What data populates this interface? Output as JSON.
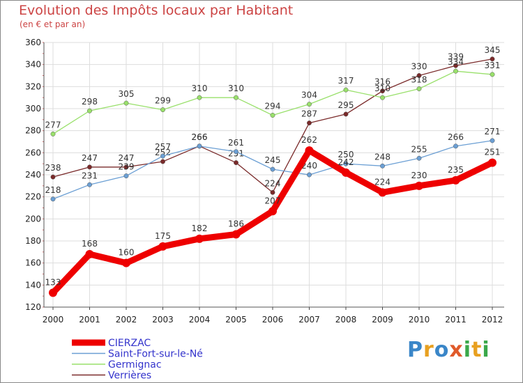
{
  "chart_data": {
    "type": "line",
    "title": "Evolution des Impôts locaux par Habitant",
    "subtitle": "(en € et par an)",
    "xlabel": "",
    "ylabel": "",
    "x": [
      2000,
      2001,
      2002,
      2003,
      2004,
      2005,
      2006,
      2007,
      2008,
      2009,
      2010,
      2011,
      2012
    ],
    "ylim": [
      120,
      360
    ],
    "yticks": [
      120,
      140,
      160,
      180,
      200,
      220,
      240,
      260,
      280,
      300,
      320,
      340,
      360
    ],
    "grid": true,
    "legend_position": "bottom-left",
    "series": [
      {
        "name": "CIERZAC",
        "color": "#ee0000",
        "width": "thick",
        "values": [
          133,
          168,
          160,
          175,
          182,
          186,
          207,
          262,
          242,
          224,
          230,
          235,
          251
        ]
      },
      {
        "name": "Saint-Fort-sur-le-Né",
        "color": "#6b9fd4",
        "width": "thin",
        "values": [
          218,
          231,
          239,
          257,
          266,
          261,
          245,
          240,
          250,
          248,
          255,
          266,
          271
        ]
      },
      {
        "name": "Germignac",
        "color": "#99e06b",
        "width": "thin",
        "values": [
          277,
          298,
          305,
          299,
          310,
          310,
          294,
          304,
          317,
          310,
          318,
          334,
          331
        ]
      },
      {
        "name": "Verrières",
        "color": "#7a2a2a",
        "width": "thin",
        "values": [
          238,
          247,
          247,
          252,
          266,
          251,
          224,
          287,
          295,
          316,
          330,
          339,
          345
        ]
      }
    ]
  },
  "logo": {
    "text": "Proxiti"
  }
}
